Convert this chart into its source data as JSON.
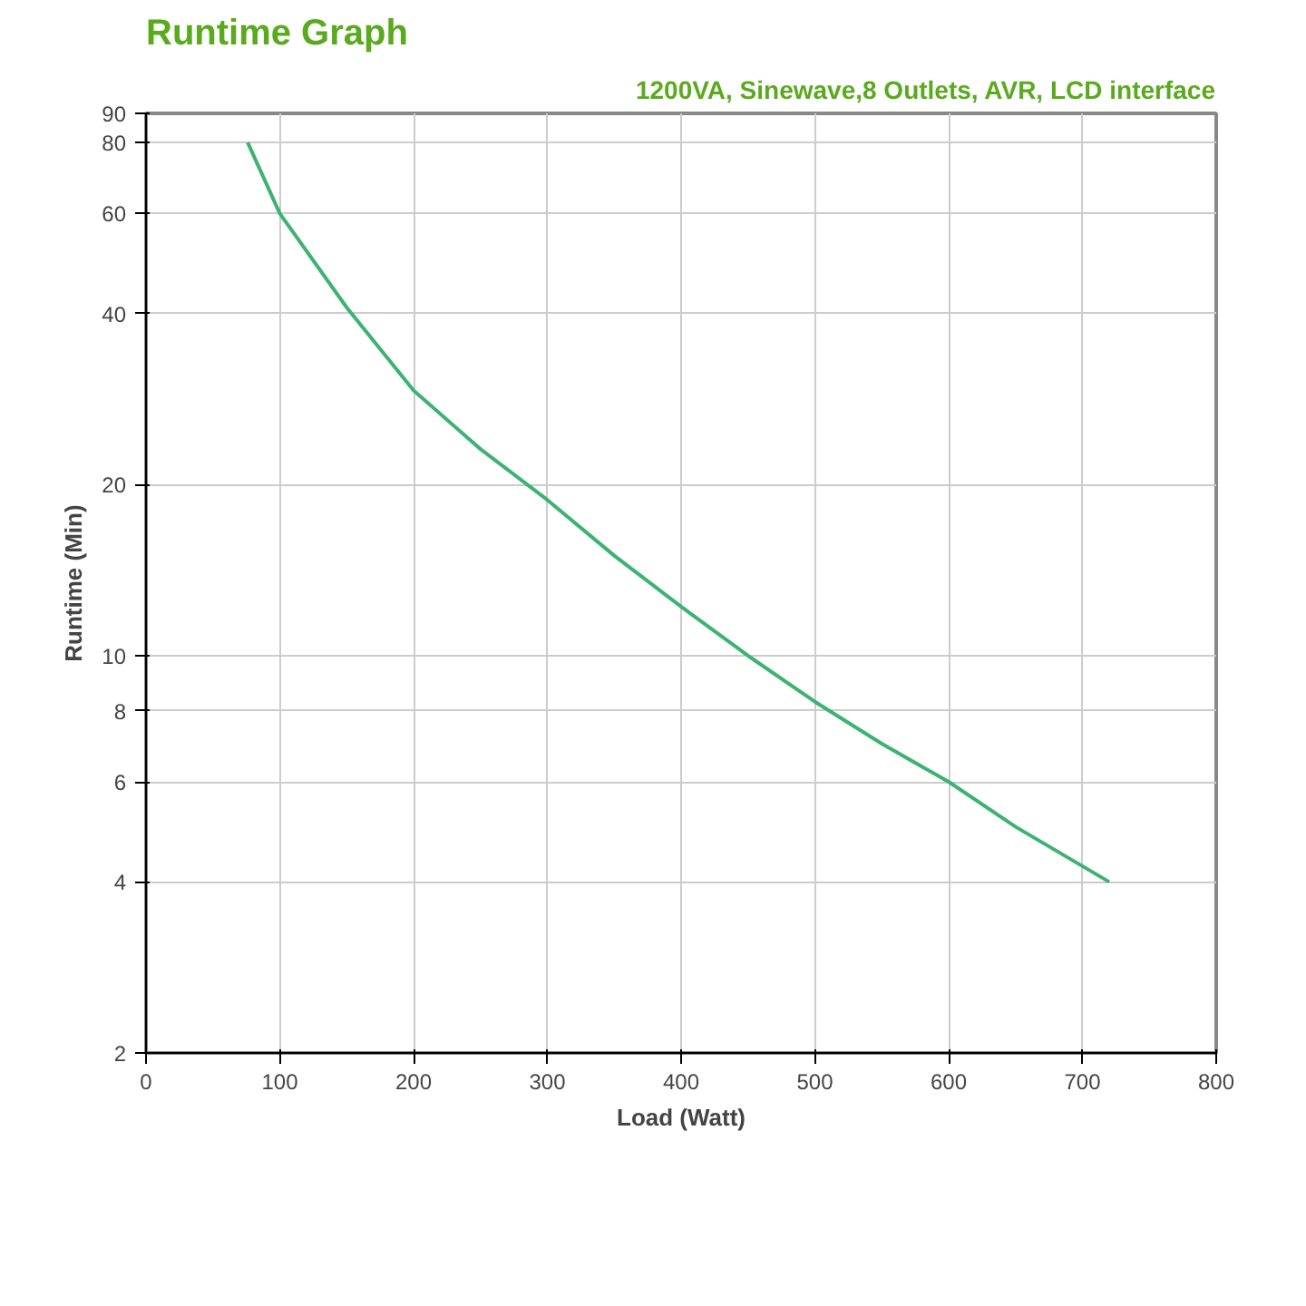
{
  "chart_data": {
    "type": "line",
    "title": "Runtime Graph",
    "subtitle": "1200VA, Sinewave,8 Outlets, AVR, LCD interface",
    "xlabel": "Load (Watt)",
    "ylabel": "Runtime (Min)",
    "x": [
      76,
      100,
      150,
      200,
      250,
      300,
      350,
      400,
      450,
      500,
      550,
      600,
      650,
      720
    ],
    "series": [
      {
        "color": "#3cb371",
        "values": [
          80,
          60,
          41,
          29.3,
          23.1,
          18.8,
          15,
          12.2,
          10,
          8.3,
          7,
          6,
          5,
          4
        ]
      }
    ],
    "log": "y",
    "xlim": [
      0,
      800
    ],
    "ylim": [
      2,
      90
    ],
    "xticks": [
      0,
      100,
      200,
      300,
      400,
      500,
      600,
      700,
      800
    ],
    "yticks": [
      2,
      4,
      6,
      8,
      10,
      20,
      40,
      60,
      80,
      90
    ],
    "grid": true
  }
}
